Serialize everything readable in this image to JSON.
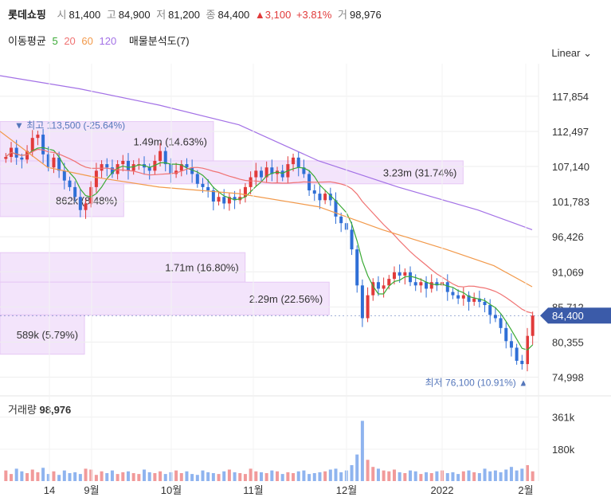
{
  "header": {
    "name": "롯데쇼핑",
    "open_label": "시",
    "open": "81,400",
    "high_label": "고",
    "high": "84,900",
    "low_label": "저",
    "low": "81,200",
    "close_label": "종",
    "close": "84,400",
    "change": "▲3,100",
    "change_pct": "+3.81%",
    "volume_label": "거",
    "volume": "98,976"
  },
  "ma_legend": {
    "label": "이동평균",
    "periods": [
      "5",
      "20",
      "60",
      "120"
    ],
    "vp_label": "매물분석도(7)"
  },
  "scale_toggle": "Linear ⌄",
  "colors": {
    "up": "#e13a3a",
    "down": "#2f6fd6",
    "ma5": "#3aaa35",
    "ma20": "#f07373",
    "ma60": "#f2994a",
    "ma120": "#a371e6",
    "vp": "#f3e4fb",
    "price_tag": "#3b5ba9"
  },
  "chart_data": {
    "type": "candlestick",
    "y_ticks": [
      "117,854",
      "112,497",
      "107,140",
      "101,783",
      "96,426",
      "91,069",
      "85,712",
      "80,355",
      "74,998"
    ],
    "ylim": [
      73000,
      121000
    ],
    "x_ticks": [
      "14",
      "9월",
      "10월",
      "11월",
      "12월",
      "2022",
      "2월"
    ],
    "current_price": "84,400",
    "high_marker": "최고 113,500 (-25.64%)",
    "low_marker": "최저 76,100 (10.91%)",
    "volume_profile": [
      {
        "from": 104500,
        "to": 108000,
        "label": "3.23m (31.74%)",
        "pct": 31.74
      },
      {
        "from": 99500,
        "to": 104500,
        "label": "862k (8.48%)",
        "pct": 8.48
      },
      {
        "from": 108000,
        "to": 114000,
        "label": "1.49m (14.63%)",
        "pct": 14.63
      },
      {
        "from": 89500,
        "to": 94000,
        "label": "1.71m (16.80%)",
        "pct": 16.8
      },
      {
        "from": 84500,
        "to": 89500,
        "label": "2.29m (22.56%)",
        "pct": 22.56
      },
      {
        "from": 78500,
        "to": 84500,
        "label": "589k (5.79%)",
        "pct": 5.79
      }
    ],
    "close_series": [
      108600,
      110000,
      108500,
      108200,
      109500,
      111500,
      112000,
      109000,
      107000,
      108500,
      106500,
      105000,
      104000,
      102500,
      100500,
      101500,
      104000,
      106500,
      107500,
      107000,
      106000,
      107500,
      108000,
      106500,
      107500,
      107500,
      107000,
      106500,
      108000,
      109500,
      107500,
      106000,
      106500,
      107500,
      107000,
      106000,
      104500,
      104000,
      103500,
      101800,
      102500,
      101500,
      102500,
      102000,
      102500,
      104000,
      105500,
      106500,
      105500,
      107000,
      106000,
      106500,
      105500,
      107500,
      108500,
      107000,
      106000,
      103500,
      103000,
      102000,
      103000,
      102000,
      99500,
      98500,
      97500,
      94500,
      89000,
      84000,
      87500,
      89500,
      88500,
      89000,
      90000,
      91000,
      90500,
      91000,
      89500,
      89000,
      89500,
      88500,
      89500,
      89000,
      89500,
      88000,
      87500,
      87000,
      87500,
      86500,
      87000,
      86500,
      86000,
      84500,
      84000,
      82500,
      80500,
      79500,
      77500,
      77000,
      81300,
      84400
    ],
    "volume_label": "거래량",
    "volume": "98,976",
    "volume_ticks": [
      "361k",
      "180k"
    ],
    "volume_series": [
      60,
      40,
      70,
      55,
      45,
      65,
      50,
      75,
      40,
      55,
      35,
      60,
      45,
      50,
      40,
      70,
      65,
      35,
      55,
      45,
      60,
      40,
      50,
      55,
      45,
      40,
      65,
      50,
      45,
      55,
      40,
      50,
      60,
      45,
      55,
      40,
      35,
      60,
      50,
      45,
      40,
      55,
      65,
      50,
      45,
      40,
      70,
      55,
      50,
      45,
      60,
      55,
      40,
      50,
      45,
      55,
      60,
      40,
      45,
      50,
      55,
      65,
      70,
      50,
      60,
      90,
      150,
      340,
      120,
      80,
      70,
      60,
      55,
      65,
      50,
      45,
      60,
      55,
      40,
      50,
      45,
      55,
      60,
      45,
      50,
      40,
      55,
      60,
      50,
      45,
      70,
      55,
      60,
      50,
      65,
      80,
      60,
      70,
      90,
      55
    ],
    "volume_max": 400
  }
}
